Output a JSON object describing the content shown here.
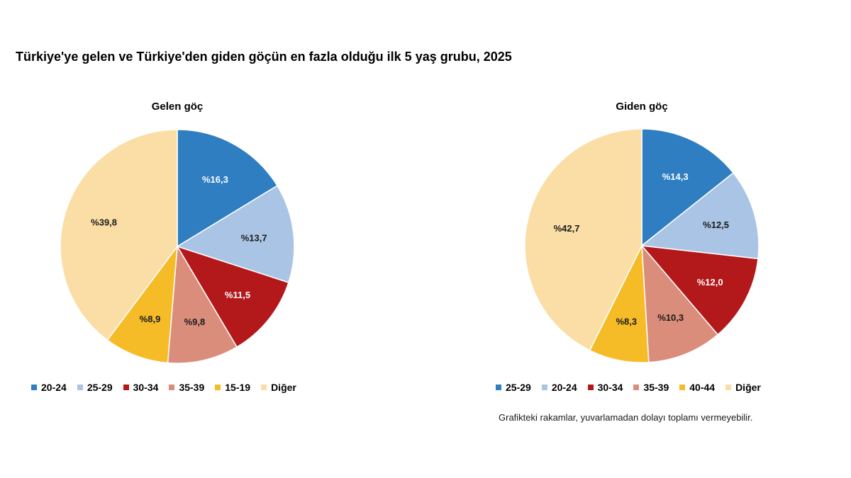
{
  "title": "Türkiye'ye gelen ve Türkiye'den giden göçün en fazla olduğu ilk 5 yaş grubu, 2025",
  "footnote": "Grafikteki rakamlar, yuvarlamadan dolayı toplamı vermeyebilir.",
  "colors": {
    "dark_blue": "#2E7EC1",
    "light_blue": "#A9C4E5",
    "dark_red": "#B3191B",
    "salmon": "#DB8D7C",
    "gold": "#F5BC28",
    "beige": "#FADEA5"
  },
  "chart_data": [
    {
      "type": "pie",
      "title": "Gelen göç",
      "label_prefix": "%",
      "legend_position": "bottom",
      "slices": [
        {
          "label": "20-24",
          "value": 16.3,
          "value_text": "%16,3",
          "color": "#2E7EC1",
          "text_color": "#ffffff"
        },
        {
          "label": "25-29",
          "value": 13.7,
          "value_text": "%13,7",
          "color": "#A9C4E5",
          "text_color": "#1a1a1a"
        },
        {
          "label": "30-34",
          "value": 11.5,
          "value_text": "%11,5",
          "color": "#B3191B",
          "text_color": "#ffffff"
        },
        {
          "label": "35-39",
          "value": 9.8,
          "value_text": "%9,8",
          "color": "#DB8D7C",
          "text_color": "#1a1a1a"
        },
        {
          "label": "15-19",
          "value": 8.9,
          "value_text": "%8,9",
          "color": "#F5BC28",
          "text_color": "#1a1a1a"
        },
        {
          "label": "Diğer",
          "value": 39.8,
          "value_text": "%39,8",
          "color": "#FADEA5",
          "text_color": "#1a1a1a"
        }
      ]
    },
    {
      "type": "pie",
      "title": "Giden göç",
      "label_prefix": "%",
      "legend_position": "bottom",
      "slices": [
        {
          "label": "25-29",
          "value": 14.3,
          "value_text": "%14,3",
          "color": "#2E7EC1",
          "text_color": "#ffffff"
        },
        {
          "label": "20-24",
          "value": 12.5,
          "value_text": "%12,5",
          "color": "#A9C4E5",
          "text_color": "#1a1a1a"
        },
        {
          "label": "30-34",
          "value": 12.0,
          "value_text": "%12,0",
          "color": "#B3191B",
          "text_color": "#ffffff"
        },
        {
          "label": "35-39",
          "value": 10.3,
          "value_text": "%10,3",
          "color": "#DB8D7C",
          "text_color": "#1a1a1a"
        },
        {
          "label": "40-44",
          "value": 8.3,
          "value_text": "%8,3",
          "color": "#F5BC28",
          "text_color": "#1a1a1a"
        },
        {
          "label": "Diğer",
          "value": 42.7,
          "value_text": "%42,7",
          "color": "#FADEA5",
          "text_color": "#1a1a1a"
        }
      ]
    }
  ]
}
